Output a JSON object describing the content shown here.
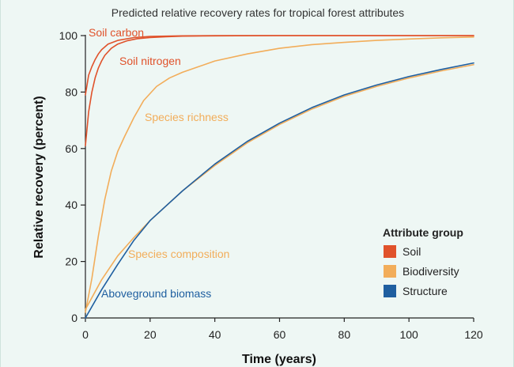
{
  "chart_data": {
    "type": "line",
    "title": "Predicted relative recovery rates for tropical forest attributes",
    "xlabel": "Time (years)",
    "ylabel": "Relative recovery (percent)",
    "xlim": [
      0,
      120
    ],
    "ylim": [
      0,
      100
    ],
    "xticks": [
      0,
      20,
      40,
      60,
      80,
      100,
      120
    ],
    "yticks": [
      0,
      20,
      40,
      60,
      80,
      100
    ],
    "grid": false,
    "legend": {
      "title": "Attribute group",
      "placement": "center-right",
      "entries": [
        {
          "key": "soil",
          "label": "Soil",
          "color": "#e0522b"
        },
        {
          "key": "biodiversity",
          "label": "Biodiversity",
          "color": "#f2ad5a"
        },
        {
          "key": "structure",
          "label": "Structure",
          "color": "#1f5fa0"
        }
      ]
    },
    "series": [
      {
        "name": "Soil carbon",
        "group": "soil",
        "color": "#e0522b",
        "x": [
          0,
          1,
          2,
          3,
          4,
          5,
          7,
          10,
          15,
          20,
          30,
          40,
          60,
          80,
          100,
          120
        ],
        "y": [
          79,
          86,
          89,
          91.5,
          93.5,
          95,
          97,
          98.3,
          99.3,
          99.7,
          99.9,
          100,
          100,
          100,
          100,
          100
        ]
      },
      {
        "name": "Soil nitrogen",
        "group": "soil",
        "color": "#e0522b",
        "x": [
          0,
          1,
          2,
          3,
          4,
          5,
          6,
          8,
          10,
          13,
          16,
          20,
          25,
          30,
          40,
          60,
          80,
          100,
          120
        ],
        "y": [
          61,
          73,
          80,
          85,
          88.5,
          91,
          93,
          95.5,
          97,
          98.2,
          98.9,
          99.3,
          99.6,
          99.8,
          99.9,
          100,
          100,
          100,
          100
        ]
      },
      {
        "name": "Species richness",
        "group": "biodiversity",
        "color": "#f2ad5a",
        "x": [
          0,
          2,
          4,
          6,
          8,
          10,
          12,
          15,
          18,
          22,
          26,
          30,
          35,
          40,
          50,
          60,
          70,
          80,
          90,
          100,
          110,
          120
        ],
        "y": [
          2,
          14,
          29,
          42,
          52,
          59,
          64,
          71,
          77,
          82,
          85,
          87,
          89,
          91,
          93.5,
          95.5,
          96.8,
          97.6,
          98.3,
          98.8,
          99.2,
          99.5
        ]
      },
      {
        "name": "Species composition",
        "group": "biodiversity",
        "color": "#f2ad5a",
        "x": [
          0,
          5,
          10,
          15,
          20,
          30,
          40,
          50,
          60,
          70,
          80,
          90,
          100,
          110,
          120
        ],
        "y": [
          3,
          13.5,
          22,
          28.5,
          34.5,
          45,
          54,
          62,
          68.5,
          74,
          78.5,
          82,
          85,
          87.5,
          89.7
        ]
      },
      {
        "name": "Aboveground biomass",
        "group": "structure",
        "color": "#1f5fa0",
        "x": [
          0,
          5,
          10,
          15,
          20,
          30,
          40,
          50,
          60,
          70,
          80,
          90,
          100,
          110,
          120
        ],
        "y": [
          0,
          10,
          19,
          27.5,
          34.5,
          45,
          54.5,
          62.5,
          69,
          74.5,
          79,
          82.5,
          85.5,
          88,
          90.3
        ]
      }
    ]
  }
}
